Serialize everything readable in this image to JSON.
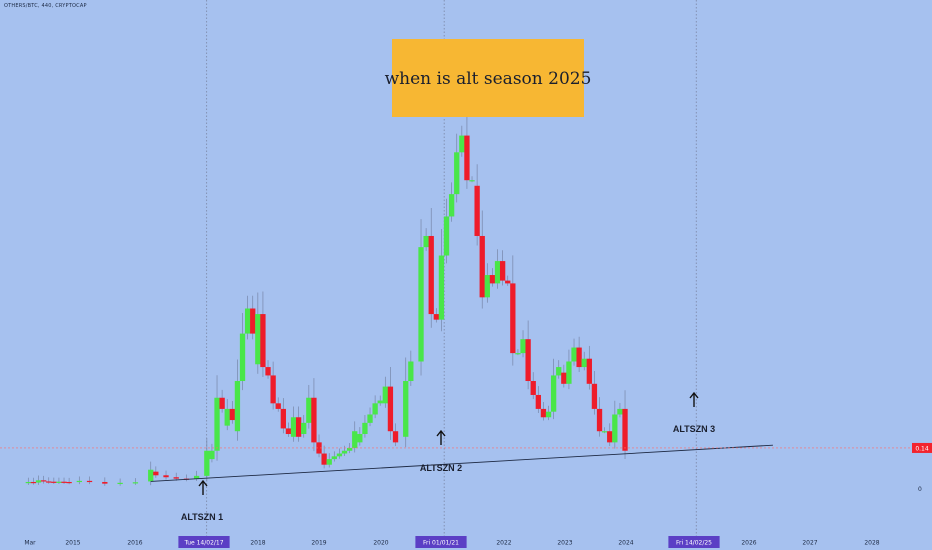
{
  "symbol": "OTHERS/BTC, 440, CRYPTOCAP",
  "banner": {
    "text": "when is alt season 2025",
    "color": "#f7b733"
  },
  "colors": {
    "background": "#a6c1ef",
    "up": "#49e649",
    "down": "#ee1c2a",
    "trendline": "#1e2a44",
    "price_line": "#ff6a6a",
    "vline": "#7a86a4",
    "marker_bg": "#5b3fc5"
  },
  "price_label": "0.14",
  "zero_label": "0",
  "altszn": [
    {
      "label": "ALTSZN 1",
      "date": "2017-02-14"
    },
    {
      "label": "ALTSZN 2",
      "date": "2021-01-01"
    },
    {
      "label": "ALTSZN 3",
      "date": "2025-02-14"
    }
  ],
  "chart_data": {
    "type": "candlestick",
    "y_scale": "linear",
    "price_level": 0.14,
    "x_labels": [
      "Mar",
      "2015",
      "2016",
      "Tue 14/02/17",
      "2018",
      "2019",
      "2020",
      "Fri 01/01/21",
      "2022",
      "2023",
      "2024",
      "Fri 14/02/25",
      "2026",
      "2027",
      "2028"
    ],
    "candles": [
      {
        "d": "2014-03",
        "o": 0.015,
        "c": 0.018
      },
      {
        "d": "2014-04",
        "o": 0.018,
        "c": 0.016
      },
      {
        "d": "2014-05",
        "o": 0.016,
        "c": 0.024
      },
      {
        "d": "2014-06",
        "o": 0.024,
        "c": 0.02
      },
      {
        "d": "2014-07",
        "o": 0.02,
        "c": 0.019
      },
      {
        "d": "2014-08",
        "o": 0.019,
        "c": 0.018
      },
      {
        "d": "2014-09",
        "o": 0.018,
        "c": 0.019
      },
      {
        "d": "2014-10",
        "o": 0.019,
        "c": 0.018
      },
      {
        "d": "2014-11",
        "o": 0.018,
        "c": 0.017
      },
      {
        "d": "2015-01",
        "o": 0.018,
        "c": 0.022
      },
      {
        "d": "2015-03",
        "o": 0.022,
        "c": 0.018
      },
      {
        "d": "2015-06",
        "o": 0.018,
        "c": 0.012
      },
      {
        "d": "2015-09",
        "o": 0.012,
        "c": 0.015
      },
      {
        "d": "2015-12",
        "o": 0.015,
        "c": 0.017
      },
      {
        "d": "2016-03",
        "o": 0.02,
        "c": 0.062
      },
      {
        "d": "2016-04",
        "o": 0.055,
        "c": 0.042
      },
      {
        "d": "2016-06",
        "o": 0.042,
        "c": 0.035
      },
      {
        "d": "2016-08",
        "o": 0.035,
        "c": 0.03
      },
      {
        "d": "2016-10",
        "o": 0.03,
        "c": 0.028
      },
      {
        "d": "2016-12",
        "o": 0.03,
        "c": 0.04
      },
      {
        "d": "2017-02",
        "o": 0.04,
        "c": 0.13
      },
      {
        "d": "2017-03",
        "o": 0.1,
        "c": 0.13
      },
      {
        "d": "2017-04",
        "o": 0.13,
        "c": 0.32
      },
      {
        "d": "2017-05",
        "o": 0.32,
        "c": 0.28
      },
      {
        "d": "2017-06",
        "o": 0.22,
        "c": 0.28
      },
      {
        "d": "2017-07",
        "o": 0.28,
        "c": 0.24
      },
      {
        "d": "2017-08",
        "o": 0.2,
        "c": 0.38
      },
      {
        "d": "2017-09",
        "o": 0.38,
        "c": 0.55
      },
      {
        "d": "2017-10",
        "o": 0.55,
        "c": 0.64
      },
      {
        "d": "2017-11",
        "o": 0.64,
        "c": 0.55
      },
      {
        "d": "2017-12",
        "o": 0.44,
        "c": 0.62
      },
      {
        "d": "2018-01",
        "o": 0.62,
        "c": 0.43
      },
      {
        "d": "2018-02",
        "o": 0.43,
        "c": 0.4
      },
      {
        "d": "2018-03",
        "o": 0.4,
        "c": 0.3
      },
      {
        "d": "2018-04",
        "o": 0.3,
        "c": 0.28
      },
      {
        "d": "2018-05",
        "o": 0.28,
        "c": 0.21
      },
      {
        "d": "2018-06",
        "o": 0.21,
        "c": 0.19
      },
      {
        "d": "2018-07",
        "o": 0.18,
        "c": 0.25
      },
      {
        "d": "2018-08",
        "o": 0.25,
        "c": 0.18
      },
      {
        "d": "2018-09",
        "o": 0.19,
        "c": 0.23
      },
      {
        "d": "2018-10",
        "o": 0.23,
        "c": 0.32
      },
      {
        "d": "2018-11",
        "o": 0.32,
        "c": 0.16
      },
      {
        "d": "2018-12",
        "o": 0.16,
        "c": 0.12
      },
      {
        "d": "2019-01",
        "o": 0.12,
        "c": 0.08
      },
      {
        "d": "2019-02",
        "o": 0.08,
        "c": 0.1
      },
      {
        "d": "2019-03",
        "o": 0.1,
        "c": 0.11
      },
      {
        "d": "2019-04",
        "o": 0.11,
        "c": 0.12
      },
      {
        "d": "2019-05",
        "o": 0.12,
        "c": 0.13
      },
      {
        "d": "2019-06",
        "o": 0.13,
        "c": 0.14
      },
      {
        "d": "2019-07",
        "o": 0.14,
        "c": 0.2
      },
      {
        "d": "2019-08",
        "o": 0.16,
        "c": 0.19
      },
      {
        "d": "2019-09",
        "o": 0.19,
        "c": 0.23
      },
      {
        "d": "2019-10",
        "o": 0.23,
        "c": 0.26
      },
      {
        "d": "2019-11",
        "o": 0.26,
        "c": 0.3
      },
      {
        "d": "2019-12",
        "o": 0.3,
        "c": 0.31
      },
      {
        "d": "2020-01",
        "o": 0.3,
        "c": 0.36
      },
      {
        "d": "2020-02",
        "o": 0.36,
        "c": 0.2
      },
      {
        "d": "2020-03",
        "o": 0.2,
        "c": 0.16
      },
      {
        "d": "2020-05",
        "o": 0.18,
        "c": 0.38
      },
      {
        "d": "2020-06",
        "o": 0.38,
        "c": 0.45
      },
      {
        "d": "2020-08",
        "o": 0.45,
        "c": 0.86
      },
      {
        "d": "2020-09",
        "o": 0.86,
        "c": 0.9
      },
      {
        "d": "2020-10",
        "o": 0.9,
        "c": 0.62
      },
      {
        "d": "2020-11",
        "o": 0.62,
        "c": 0.6
      },
      {
        "d": "2020-12",
        "o": 0.6,
        "c": 0.83
      },
      {
        "d": "2021-01",
        "o": 0.83,
        "c": 0.97
      },
      {
        "d": "2021-02",
        "o": 0.97,
        "c": 1.05
      },
      {
        "d": "2021-03",
        "o": 1.05,
        "c": 1.2
      },
      {
        "d": "2021-04",
        "o": 1.2,
        "c": 1.26
      },
      {
        "d": "2021-05",
        "o": 1.26,
        "c": 1.1
      },
      {
        "d": "2021-06",
        "o": 1.1,
        "c": 1.1
      },
      {
        "d": "2021-07",
        "o": 1.08,
        "c": 0.9
      },
      {
        "d": "2021-08",
        "o": 0.9,
        "c": 0.68
      },
      {
        "d": "2021-09",
        "o": 0.68,
        "c": 0.76
      },
      {
        "d": "2021-10",
        "o": 0.76,
        "c": 0.73
      },
      {
        "d": "2021-11",
        "o": 0.73,
        "c": 0.81
      },
      {
        "d": "2021-12",
        "o": 0.81,
        "c": 0.74
      },
      {
        "d": "2022-01",
        "o": 0.74,
        "c": 0.73
      },
      {
        "d": "2022-02",
        "o": 0.73,
        "c": 0.48
      },
      {
        "d": "2022-03",
        "o": 0.48,
        "c": 0.48
      },
      {
        "d": "2022-04",
        "o": 0.48,
        "c": 0.53
      },
      {
        "d": "2022-05",
        "o": 0.53,
        "c": 0.38
      },
      {
        "d": "2022-06",
        "o": 0.38,
        "c": 0.33
      },
      {
        "d": "2022-07",
        "o": 0.33,
        "c": 0.28
      },
      {
        "d": "2022-08",
        "o": 0.28,
        "c": 0.25
      },
      {
        "d": "2022-09",
        "o": 0.25,
        "c": 0.27
      },
      {
        "d": "2022-10",
        "o": 0.27,
        "c": 0.4
      },
      {
        "d": "2022-11",
        "o": 0.4,
        "c": 0.43
      },
      {
        "d": "2022-12",
        "o": 0.41,
        "c": 0.37
      },
      {
        "d": "2023-01",
        "o": 0.37,
        "c": 0.45
      },
      {
        "d": "2023-02",
        "o": 0.45,
        "c": 0.5
      },
      {
        "d": "2023-03",
        "o": 0.5,
        "c": 0.43
      },
      {
        "d": "2023-04",
        "o": 0.43,
        "c": 0.46
      },
      {
        "d": "2023-05",
        "o": 0.46,
        "c": 0.37
      },
      {
        "d": "2023-06",
        "o": 0.37,
        "c": 0.28
      },
      {
        "d": "2023-07",
        "o": 0.28,
        "c": 0.2
      },
      {
        "d": "2023-08",
        "o": 0.2,
        "c": 0.2
      },
      {
        "d": "2023-09",
        "o": 0.2,
        "c": 0.16
      },
      {
        "d": "2023-10",
        "o": 0.16,
        "c": 0.26
      },
      {
        "d": "2023-11",
        "o": 0.26,
        "c": 0.28
      },
      {
        "d": "2023-12",
        "o": 0.28,
        "c": 0.13
      }
    ],
    "trendline": [
      {
        "d": "2016-03",
        "v": 0.02
      },
      {
        "d": "2026-05",
        "v": 0.15
      }
    ]
  }
}
